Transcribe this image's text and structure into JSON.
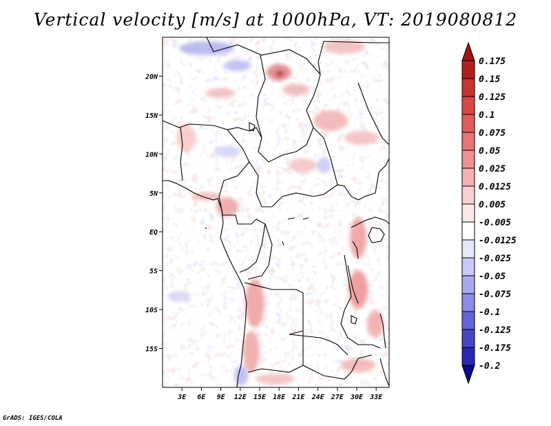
{
  "title": "Vertical velocity [m/s] at 1000hPa, VT: 2019080812",
  "credit": "GrADS: IGES/COLA",
  "map": {
    "lon_range": [
      0,
      35
    ],
    "lat_range": [
      -20,
      25
    ],
    "lat_ticks": [
      {
        "value": 20,
        "label": "20N"
      },
      {
        "value": 15,
        "label": "15N"
      },
      {
        "value": 10,
        "label": "10N"
      },
      {
        "value": 5,
        "label": "5N"
      },
      {
        "value": 0,
        "label": "EQ"
      },
      {
        "value": -5,
        "label": "5S"
      },
      {
        "value": -10,
        "label": "10S"
      },
      {
        "value": -15,
        "label": "15S"
      }
    ],
    "lon_ticks": [
      {
        "value": 3,
        "label": "3E"
      },
      {
        "value": 6,
        "label": "6E"
      },
      {
        "value": 9,
        "label": "9E"
      },
      {
        "value": 12,
        "label": "12E"
      },
      {
        "value": 15,
        "label": "15E"
      },
      {
        "value": 18,
        "label": "18E"
      },
      {
        "value": 21,
        "label": "21E"
      },
      {
        "value": 24,
        "label": "24E"
      },
      {
        "value": 27,
        "label": "27E"
      },
      {
        "value": 30,
        "label": "30E"
      },
      {
        "value": 33,
        "label": "33E"
      }
    ]
  },
  "colorbar": {
    "levels": [
      {
        "label": "0.175",
        "color": "#b41e1e"
      },
      {
        "label": "0.15",
        "color": "#c83232"
      },
      {
        "label": "0.125",
        "color": "#dc4646"
      },
      {
        "label": "0.1",
        "color": "#e45a5a"
      },
      {
        "label": "0.075",
        "color": "#ea7474"
      },
      {
        "label": "0.05",
        "color": "#f09090"
      },
      {
        "label": "0.025",
        "color": "#f5b0b0"
      },
      {
        "label": "0.0125",
        "color": "#f9d0d0"
      },
      {
        "label": "0.005",
        "color": "#fde8e8"
      },
      {
        "label": "-0.005",
        "color": "#ffffff"
      },
      {
        "label": "-0.0125",
        "color": "#e6e6fc"
      },
      {
        "label": "-0.025",
        "color": "#c8c8f8"
      },
      {
        "label": "-0.05",
        "color": "#a8a8f2"
      },
      {
        "label": "-0.075",
        "color": "#8a8ae8"
      },
      {
        "label": "-0.1",
        "color": "#6464dc"
      },
      {
        "label": "-0.125",
        "color": "#4646c8"
      },
      {
        "label": "-0.175",
        "color": "#2828b4"
      },
      {
        "label": "-0.2",
        "color": "#14149a"
      }
    ],
    "top_arrow_color": "#a01414",
    "bottom_arrow_color": "#0a0a8c"
  }
}
